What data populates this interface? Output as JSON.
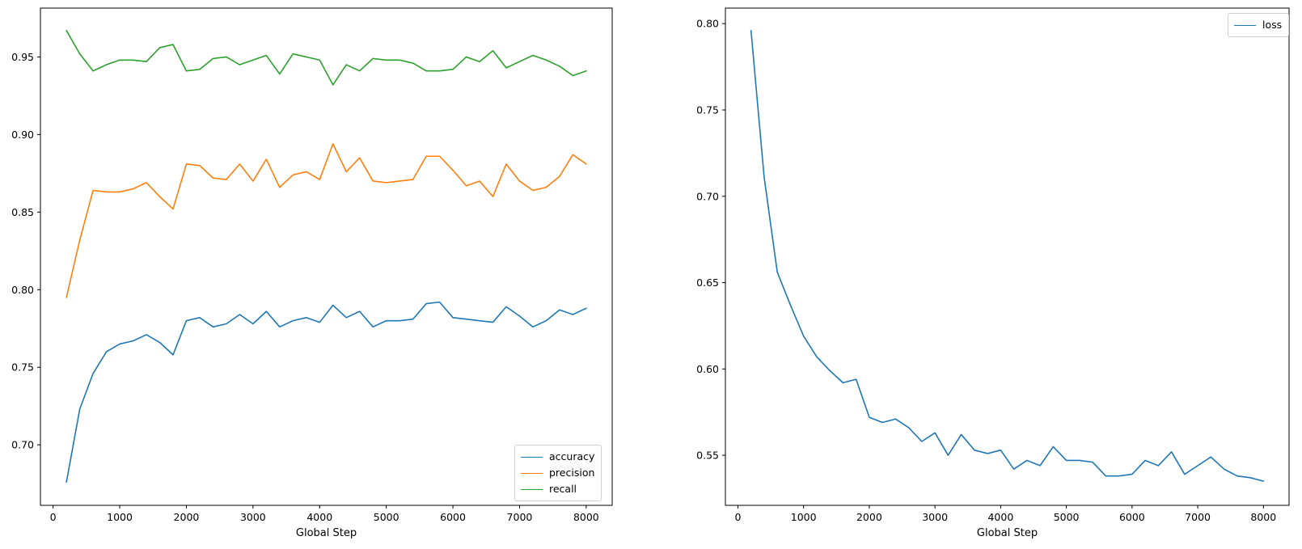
{
  "figure": {
    "background": "#ffffff",
    "text_color": "#000000",
    "spine_color": "#000000"
  },
  "chart_data": [
    {
      "type": "line",
      "name": "metrics",
      "xlabel": "Global Step",
      "ylabel": "",
      "grid": false,
      "legend_position": "lower right",
      "xlim": [
        -190,
        8390
      ],
      "ylim": [
        0.661,
        0.9815
      ],
      "xticks": [
        0,
        1000,
        2000,
        3000,
        4000,
        5000,
        6000,
        7000,
        8000
      ],
      "yticks": [
        0.7,
        0.75,
        0.8,
        0.85,
        0.9,
        0.95
      ],
      "x": [
        200,
        400,
        600,
        800,
        1000,
        1200,
        1400,
        1600,
        1800,
        2000,
        2200,
        2400,
        2600,
        2800,
        3000,
        3200,
        3400,
        3600,
        3800,
        4000,
        4200,
        4400,
        4600,
        4800,
        5000,
        5200,
        5400,
        5600,
        5800,
        6000,
        6200,
        6400,
        6600,
        6800,
        7000,
        7200,
        7400,
        7600,
        7800,
        8000
      ],
      "series": [
        {
          "name": "accuracy",
          "color": "#1f77b4",
          "values": [
            0.676,
            0.723,
            0.746,
            0.76,
            0.765,
            0.767,
            0.771,
            0.766,
            0.758,
            0.78,
            0.782,
            0.776,
            0.778,
            0.784,
            0.778,
            0.786,
            0.776,
            0.78,
            0.782,
            0.779,
            0.79,
            0.782,
            0.786,
            0.776,
            0.78,
            0.78,
            0.781,
            0.791,
            0.792,
            0.782,
            0.781,
            0.78,
            0.779,
            0.789,
            0.783,
            0.776,
            0.78,
            0.787,
            0.784,
            0.788
          ]
        },
        {
          "name": "precision",
          "color": "#ff7f0e",
          "values": [
            0.795,
            0.832,
            0.864,
            0.863,
            0.863,
            0.865,
            0.869,
            0.86,
            0.852,
            0.881,
            0.88,
            0.872,
            0.871,
            0.881,
            0.87,
            0.884,
            0.866,
            0.874,
            0.876,
            0.871,
            0.894,
            0.876,
            0.885,
            0.87,
            0.869,
            0.87,
            0.871,
            0.886,
            0.886,
            0.877,
            0.867,
            0.87,
            0.86,
            0.881,
            0.87,
            0.864,
            0.866,
            0.873,
            0.887,
            0.881
          ]
        },
        {
          "name": "recall",
          "color": "#2ca02c",
          "values": [
            0.967,
            0.952,
            0.941,
            0.945,
            0.948,
            0.948,
            0.947,
            0.956,
            0.958,
            0.941,
            0.942,
            0.949,
            0.95,
            0.945,
            0.948,
            0.951,
            0.939,
            0.952,
            0.95,
            0.948,
            0.932,
            0.945,
            0.941,
            0.949,
            0.948,
            0.948,
            0.946,
            0.941,
            0.941,
            0.942,
            0.95,
            0.947,
            0.954,
            0.943,
            0.947,
            0.951,
            0.948,
            0.944,
            0.938,
            0.941
          ]
        }
      ]
    },
    {
      "type": "line",
      "name": "loss",
      "xlabel": "Global Step",
      "ylabel": "",
      "grid": false,
      "legend_position": "upper right",
      "xlim": [
        -190,
        8390
      ],
      "ylim": [
        0.521,
        0.809
      ],
      "xticks": [
        0,
        1000,
        2000,
        3000,
        4000,
        5000,
        6000,
        7000,
        8000
      ],
      "yticks": [
        0.55,
        0.6,
        0.65,
        0.7,
        0.75,
        0.8
      ],
      "x": [
        200,
        400,
        600,
        800,
        1000,
        1200,
        1400,
        1600,
        1800,
        2000,
        2200,
        2400,
        2600,
        2800,
        3000,
        3200,
        3400,
        3600,
        3800,
        4000,
        4200,
        4400,
        4600,
        4800,
        5000,
        5200,
        5400,
        5600,
        5800,
        6000,
        6200,
        6400,
        6600,
        6800,
        7000,
        7200,
        7400,
        7600,
        7800,
        8000
      ],
      "series": [
        {
          "name": "loss",
          "color": "#1f77b4",
          "values": [
            0.796,
            0.711,
            0.656,
            0.637,
            0.619,
            0.607,
            0.599,
            0.592,
            0.594,
            0.572,
            0.569,
            0.571,
            0.566,
            0.558,
            0.563,
            0.55,
            0.562,
            0.553,
            0.551,
            0.553,
            0.542,
            0.547,
            0.544,
            0.555,
            0.547,
            0.547,
            0.546,
            0.538,
            0.538,
            0.539,
            0.547,
            0.544,
            0.552,
            0.539,
            0.544,
            0.549,
            0.542,
            0.538,
            0.537,
            0.535
          ]
        }
      ]
    }
  ]
}
